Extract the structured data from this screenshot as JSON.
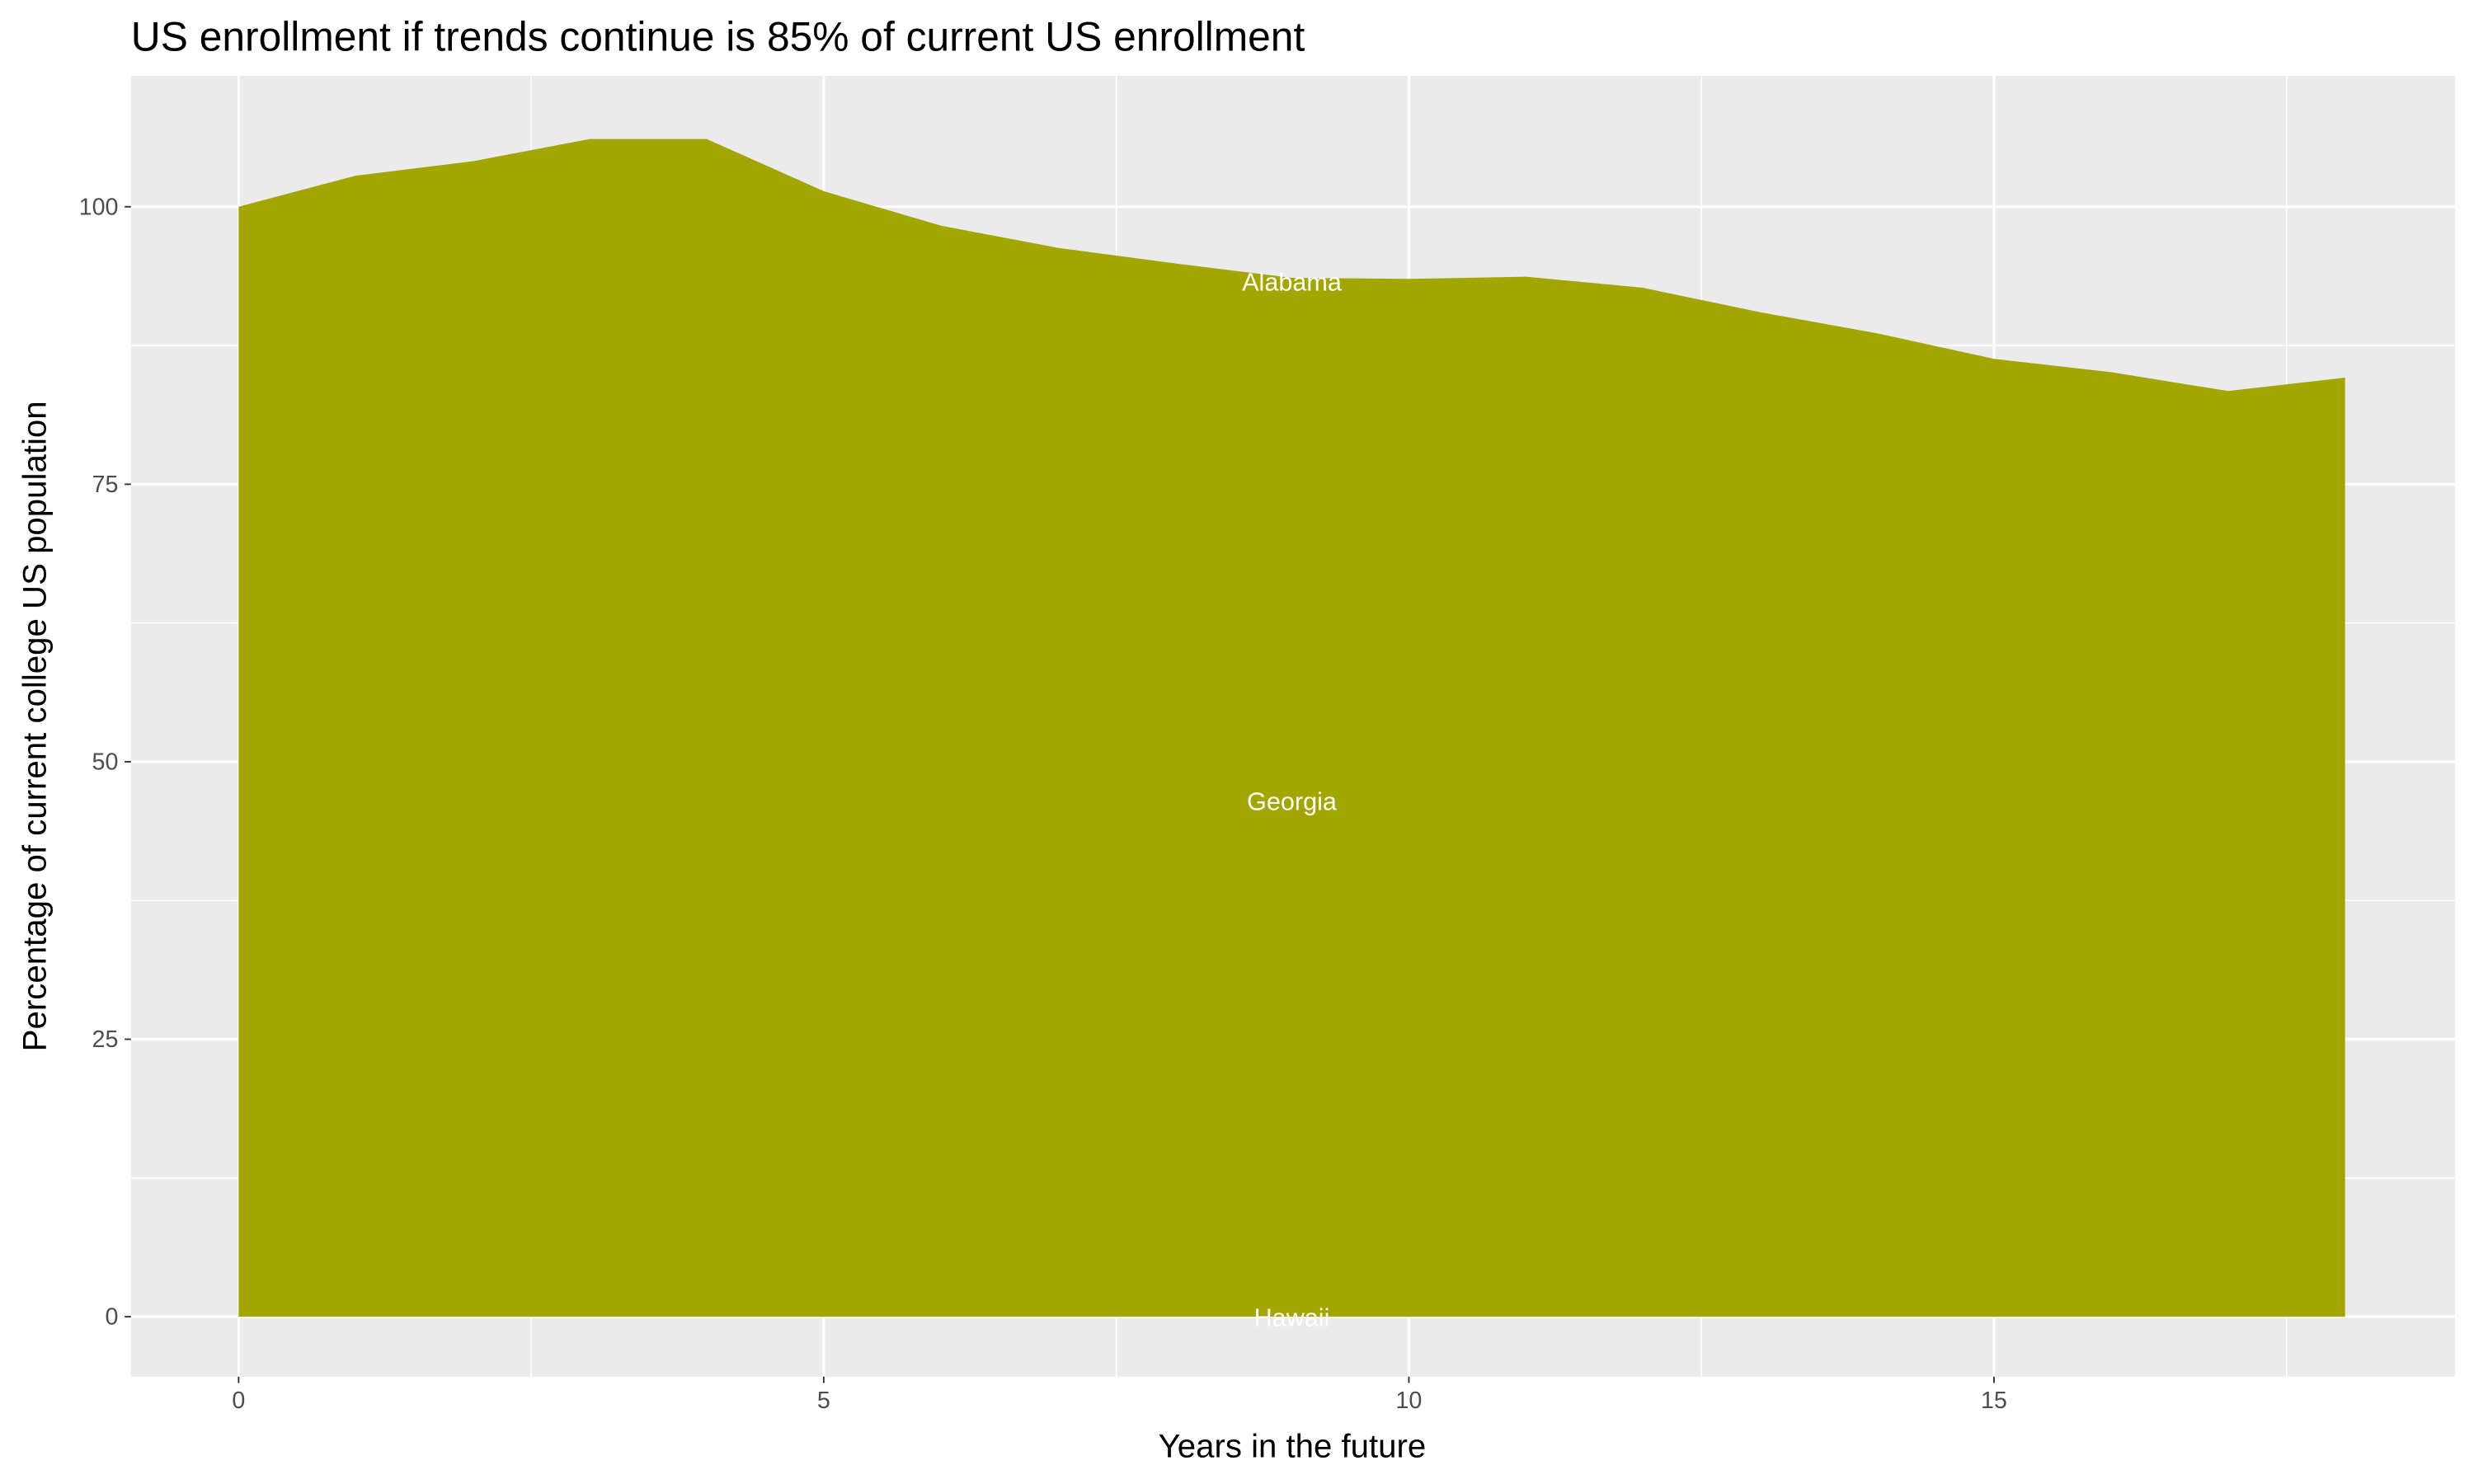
{
  "chart_data": {
    "type": "area",
    "title": "US enrollment if trends continue is 85% of current US enrollment",
    "x_label": "Years in the future",
    "y_label": "Percentage of current college US population",
    "x": [
      0,
      1,
      2,
      3,
      4,
      5,
      6,
      7,
      8,
      9,
      10,
      11,
      12,
      13,
      14,
      15,
      16,
      17,
      18
    ],
    "series": [
      {
        "color": "#a3a500",
        "values": [
          100,
          102.8,
          104.1,
          106.1,
          106.1,
          101.4,
          98.3,
          96.3,
          94.9,
          93.6,
          93.5,
          93.7,
          92.7,
          90.5,
          88.6,
          86.3,
          85.1,
          83.4,
          84.6
        ]
      }
    ],
    "annotations": [
      {
        "text": "Alabama",
        "x": 9,
        "y": 93.3
      },
      {
        "text": "Georgia",
        "x": 9,
        "y": 46.5
      },
      {
        "text": "Hawaii",
        "x": 9,
        "y": 0
      }
    ],
    "xlim": [
      -0.92,
      18.94
    ],
    "ylim": [
      -5.4,
      111.8
    ],
    "xticks": [
      0,
      5,
      10,
      15
    ],
    "yticks": [
      0,
      25,
      50,
      75,
      100
    ],
    "x_minor_breaks": [
      2.5,
      7.5,
      12.5,
      17.5
    ],
    "y_minor_breaks": [
      12.5,
      37.5,
      62.5,
      87.5
    ],
    "grid": true
  }
}
